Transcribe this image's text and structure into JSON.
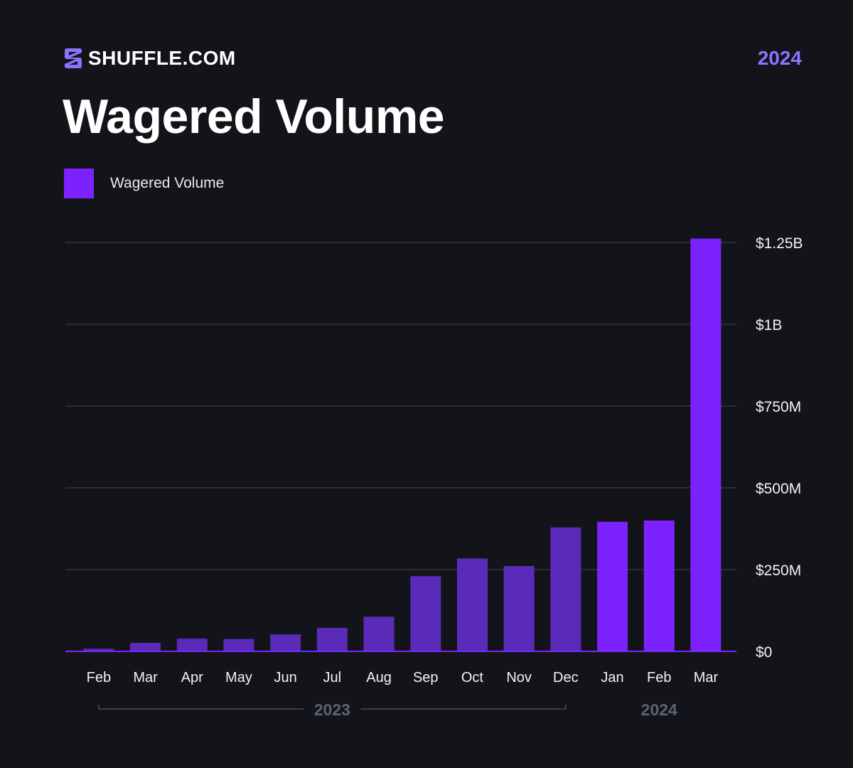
{
  "header": {
    "brand": "SHUFFLE.COM",
    "year_badge": "2024",
    "title": "Wagered Volume"
  },
  "colors": {
    "background": "#131419",
    "bar_2023": "#5a2bb8",
    "bar_2024": "#7c22ff",
    "accent_text": "#8a73ff",
    "grid": "#34353f",
    "year_label": "#5d6273"
  },
  "icons": {
    "logo": "shuffle-logo-icon"
  },
  "chart_data": {
    "type": "bar",
    "legend": {
      "label": "Wagered Volume",
      "position": "top-left"
    },
    "categories": [
      "Feb",
      "Mar",
      "Apr",
      "May",
      "Jun",
      "Jul",
      "Aug",
      "Sep",
      "Oct",
      "Nov",
      "Dec",
      "Jan",
      "Feb",
      "Mar"
    ],
    "series": [
      {
        "name": "Wagered Volume",
        "values": [
          8,
          26,
          39,
          38,
          52,
          72,
          106,
          230,
          284,
          261,
          379,
          396,
          400,
          1262
        ]
      }
    ],
    "year_groups": [
      {
        "label": "2023",
        "start_index": 0,
        "end_index": 10
      },
      {
        "label": "2024",
        "start_index": 11,
        "end_index": 13
      }
    ],
    "yticks": [
      0,
      250,
      500,
      750,
      1000,
      1250
    ],
    "ytick_labels": [
      "$0",
      "$250M",
      "$500M",
      "$750M",
      "$1B",
      "$1.25B"
    ],
    "y_unit": "millions USD",
    "ylim": [
      0,
      1250
    ],
    "y_axis_side": "right",
    "grid": true
  }
}
